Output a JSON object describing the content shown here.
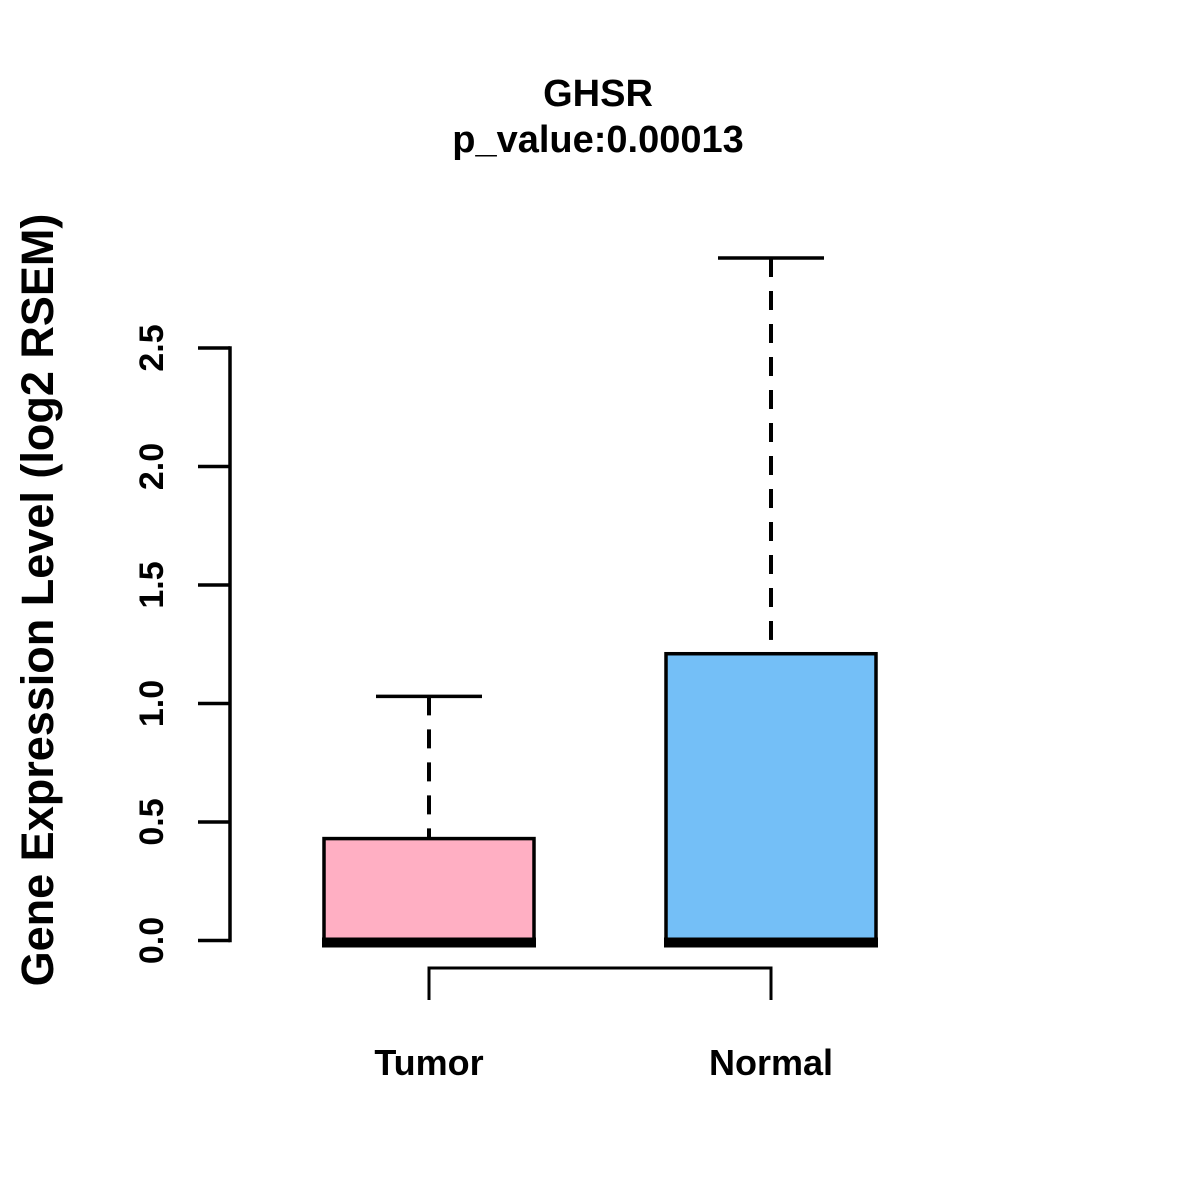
{
  "chart_data": {
    "type": "boxplot",
    "title": "GHSR",
    "subtitle": "p_value:0.00013",
    "p_value": "0.00013",
    "ylabel": "Gene Expression Level (log2 RSEM)",
    "xlabel": "",
    "ylim": [
      0,
      2.95
    ],
    "yticks": [
      0.0,
      0.5,
      1.0,
      1.5,
      2.0,
      2.5
    ],
    "ytick_labels": [
      "0.0",
      "0.5",
      "1.0",
      "1.5",
      "2.0",
      "2.5"
    ],
    "categories": [
      "Tumor",
      "Normal"
    ],
    "series": [
      {
        "name": "Tumor",
        "box_color": "#FFAFC3",
        "stats": {
          "lower_whisker": 0,
          "q1": 0,
          "median": 0,
          "q3": 0.43,
          "upper_whisker": 1.03
        }
      },
      {
        "name": "Normal",
        "box_color": "#74BFF7",
        "stats": {
          "lower_whisker": 0,
          "q1": 0,
          "median": 0,
          "q3": 1.21,
          "upper_whisker": 2.88
        }
      }
    ],
    "stroke_color": "#000000",
    "background_color": "#FFFFFF",
    "whisker_style": "dashed",
    "legend": "none",
    "grid": "off",
    "comparison_bracket": {
      "present": true,
      "connects": [
        "Tumor",
        "Normal"
      ]
    }
  }
}
